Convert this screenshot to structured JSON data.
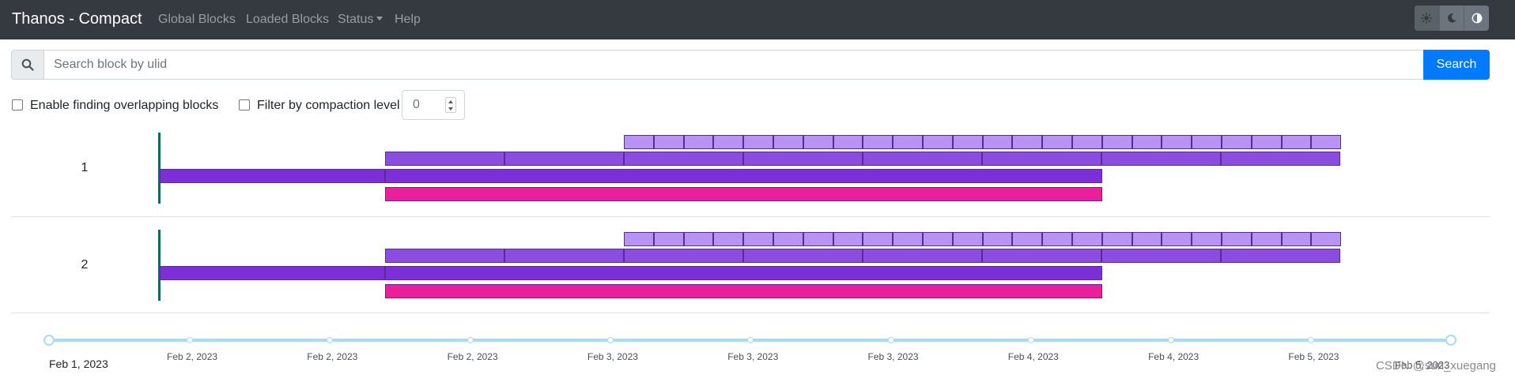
{
  "app": {
    "title": "Thanos - Compact",
    "nav": [
      "Global Blocks",
      "Loaded Blocks",
      "Status",
      "Help"
    ],
    "theme_buttons": [
      "light-theme",
      "dark-theme",
      "browser-theme"
    ]
  },
  "search": {
    "placeholder": "Search block by ulid",
    "button_label": "Search"
  },
  "filters": {
    "overlap_label": "Enable finding overlapping blocks",
    "overlap_checked": false,
    "compaction_label": "Filter by compaction level",
    "compaction_checked": false,
    "compaction_value": "0"
  },
  "colors": {
    "level1": "#b794f4",
    "level2": "#8a4de0",
    "level3": "#7c2fd9",
    "level4": "#ea1f9c",
    "block_border": "#5a2a9a",
    "marker": "#0d6b5b",
    "timeline": "#a8dcf0",
    "navbar": "#343a40",
    "primary": "#007bff"
  },
  "rows": [
    {
      "label": "1"
    },
    {
      "label": "2"
    }
  ],
  "timeline": {
    "start_label": "Feb 1, 2023",
    "end_label": "Feb 5, 2023",
    "ticks": [
      "Feb 2, 2023",
      "Feb 2, 2023",
      "Feb 2, 2023",
      "Feb 3, 2023",
      "Feb 3, 2023",
      "Feb 3, 2023",
      "Feb 4, 2023",
      "Feb 4, 2023",
      "Feb 5, 2023"
    ]
  },
  "watermark": "CSDN @sun_xuegang"
}
